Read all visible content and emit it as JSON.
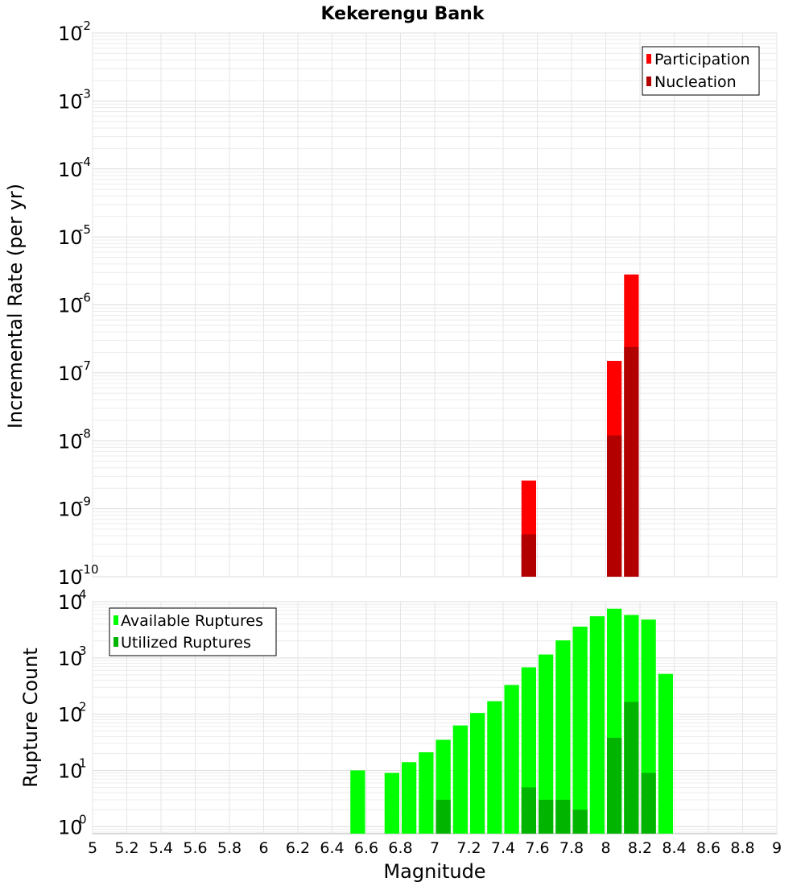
{
  "title": "Kekerengu Bank",
  "xlabel": "Magnitude",
  "x_ticks": [
    "5",
    "5.2",
    "5.4",
    "5.6",
    "5.8",
    "6",
    "6.2",
    "6.4",
    "6.6",
    "6.8",
    "7",
    "7.2",
    "7.4",
    "7.6",
    "7.8",
    "8",
    "8.2",
    "8.4",
    "8.6",
    "8.8",
    "9"
  ],
  "chart_data": [
    {
      "type": "bar",
      "ylabel": "Incremental Rate (per yr)",
      "yscale": "log",
      "xlim": [
        5,
        9
      ],
      "ylim": [
        1e-10,
        0.01
      ],
      "y_ticks": [
        {
          "base": "10",
          "exp": "-2"
        },
        {
          "base": "10",
          "exp": "-3"
        },
        {
          "base": "10",
          "exp": "-4"
        },
        {
          "base": "10",
          "exp": "-5"
        },
        {
          "base": "10",
          "exp": "-6"
        },
        {
          "base": "10",
          "exp": "-7"
        },
        {
          "base": "10",
          "exp": "-8"
        },
        {
          "base": "10",
          "exp": "-9"
        },
        {
          "base": "10",
          "exp": "-10"
        }
      ],
      "grid": true,
      "legend_position": "top-right",
      "series": [
        {
          "name": "Participation",
          "color": "#ff0000",
          "x": [
            7.55,
            8.05,
            8.15
          ],
          "values": [
            2.6e-09,
            1.5e-07,
            2.8e-06
          ]
        },
        {
          "name": "Nucleation",
          "color": "#b20000",
          "x": [
            7.55,
            8.05,
            8.15
          ],
          "values": [
            4.2e-10,
            1.2e-08,
            2.4e-07
          ]
        }
      ]
    },
    {
      "type": "bar",
      "ylabel": "Rupture Count",
      "yscale": "log",
      "xlim": [
        5,
        9
      ],
      "ylim": [
        0.75,
        10000
      ],
      "y_ticks": [
        {
          "base": "10",
          "exp": "4"
        },
        {
          "base": "10",
          "exp": "3"
        },
        {
          "base": "10",
          "exp": "2"
        },
        {
          "base": "10",
          "exp": "1"
        },
        {
          "base": "10",
          "exp": "0"
        }
      ],
      "grid": true,
      "legend_position": "top-left",
      "series": [
        {
          "name": "Available Ruptures",
          "color": "#00ff00",
          "x": [
            6.55,
            6.75,
            6.85,
            6.95,
            7.05,
            7.15,
            7.25,
            7.35,
            7.45,
            7.55,
            7.65,
            7.75,
            7.85,
            7.95,
            8.05,
            8.15,
            8.25,
            8.35
          ],
          "values": [
            10,
            9,
            14,
            21,
            35,
            63,
            105,
            170,
            330,
            680,
            1150,
            2050,
            3600,
            5500,
            7500,
            5800,
            4800,
            520
          ]
        },
        {
          "name": "Utilized Ruptures",
          "color": "#00b400",
          "x": [
            7.05,
            7.55,
            7.65,
            7.75,
            7.85,
            8.05,
            8.15,
            8.25
          ],
          "values": [
            3,
            5,
            3,
            3,
            2,
            38,
            165,
            9
          ]
        }
      ]
    }
  ]
}
